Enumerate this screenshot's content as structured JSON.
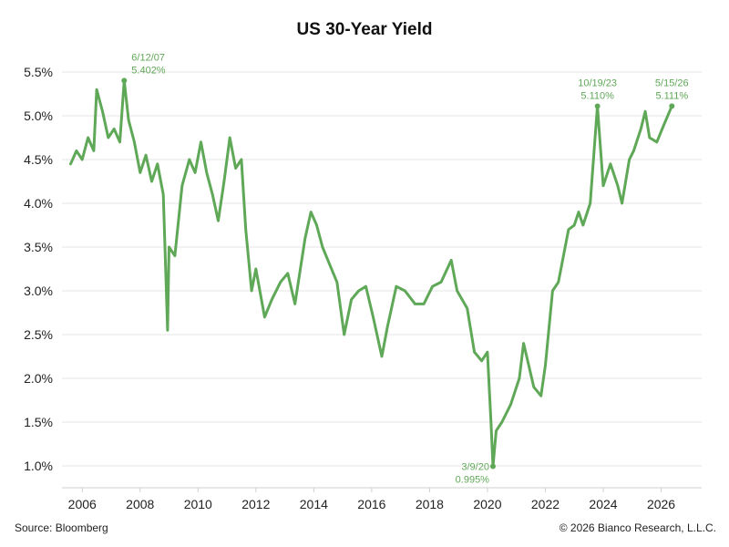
{
  "chart_data": {
    "type": "line",
    "title": "US 30-Year Yield",
    "xlabel": "",
    "ylabel": "",
    "xlim": [
      2005.3,
      2027.4
    ],
    "ylim": [
      0.75,
      5.75
    ],
    "grid": "horizontal",
    "line_color": "#5fa857",
    "x_ticks": [
      {
        "value": 2006,
        "label": "2006"
      },
      {
        "value": 2008,
        "label": "2008"
      },
      {
        "value": 2010,
        "label": "2010"
      },
      {
        "value": 2012,
        "label": "2012"
      },
      {
        "value": 2014,
        "label": "2014"
      },
      {
        "value": 2016,
        "label": "2016"
      },
      {
        "value": 2018,
        "label": "2018"
      },
      {
        "value": 2020,
        "label": "2020"
      },
      {
        "value": 2022,
        "label": "2022"
      },
      {
        "value": 2024,
        "label": "2024"
      },
      {
        "value": 2026,
        "label": "2026"
      }
    ],
    "y_ticks": [
      {
        "value": 1.0,
        "label": "1.0%"
      },
      {
        "value": 1.5,
        "label": "1.5%"
      },
      {
        "value": 2.0,
        "label": "2.0%"
      },
      {
        "value": 2.5,
        "label": "2.5%"
      },
      {
        "value": 3.0,
        "label": "3.0%"
      },
      {
        "value": 3.5,
        "label": "3.5%"
      },
      {
        "value": 4.0,
        "label": "4.0%"
      },
      {
        "value": 4.5,
        "label": "4.5%"
      },
      {
        "value": 5.0,
        "label": "5.0%"
      },
      {
        "value": 5.5,
        "label": "5.5%"
      }
    ],
    "series": [
      {
        "x": [
          2005.6,
          2005.8,
          2006.0,
          2006.2,
          2006.4,
          2006.5,
          2006.7,
          2006.9,
          2007.1,
          2007.3,
          2007.45,
          2007.6,
          2007.8,
          2008.0,
          2008.2,
          2008.4,
          2008.6,
          2008.8,
          2008.95,
          2009.0,
          2009.2,
          2009.45,
          2009.7,
          2009.9,
          2010.1,
          2010.3,
          2010.5,
          2010.7,
          2010.9,
          2011.1,
          2011.3,
          2011.5,
          2011.65,
          2011.85,
          2012.0,
          2012.3,
          2012.55,
          2012.85,
          2013.1,
          2013.35,
          2013.7,
          2013.9,
          2014.1,
          2014.3,
          2014.55,
          2014.8,
          2015.05,
          2015.3,
          2015.55,
          2015.8,
          2016.05,
          2016.35,
          2016.55,
          2016.85,
          2017.15,
          2017.5,
          2017.8,
          2018.1,
          2018.4,
          2018.75,
          2018.95,
          2019.3,
          2019.55,
          2019.8,
          2020.0,
          2020.12,
          2020.19,
          2020.3,
          2020.5,
          2020.8,
          2021.1,
          2021.25,
          2021.6,
          2021.85,
          2022.0,
          2022.25,
          2022.45,
          2022.8,
          2023.0,
          2023.15,
          2023.3,
          2023.55,
          2023.8,
          2024.0,
          2024.25,
          2024.5,
          2024.65,
          2024.9,
          2025.05,
          2025.3,
          2025.45,
          2025.6,
          2025.85,
          2026.1,
          2026.37
        ],
        "values": [
          4.45,
          4.6,
          4.5,
          4.75,
          4.6,
          5.3,
          5.05,
          4.75,
          4.85,
          4.7,
          5.402,
          4.95,
          4.7,
          4.35,
          4.55,
          4.25,
          4.45,
          4.1,
          2.55,
          3.5,
          3.4,
          4.2,
          4.5,
          4.35,
          4.7,
          4.35,
          4.1,
          3.8,
          4.25,
          4.75,
          4.4,
          4.5,
          3.7,
          3.0,
          3.25,
          2.7,
          2.9,
          3.1,
          3.2,
          2.85,
          3.6,
          3.9,
          3.75,
          3.5,
          3.3,
          3.1,
          2.5,
          2.9,
          3.0,
          3.05,
          2.7,
          2.25,
          2.6,
          3.05,
          3.0,
          2.85,
          2.85,
          3.05,
          3.1,
          3.35,
          3.0,
          2.8,
          2.3,
          2.2,
          2.3,
          1.5,
          0.995,
          1.4,
          1.5,
          1.7,
          2.0,
          2.4,
          1.9,
          1.8,
          2.15,
          3.0,
          3.1,
          3.7,
          3.75,
          3.9,
          3.75,
          4.0,
          5.11,
          4.2,
          4.45,
          4.2,
          4.0,
          4.5,
          4.6,
          4.85,
          5.05,
          4.75,
          4.7,
          4.9,
          5.111
        ]
      }
    ],
    "annotations": [
      {
        "x": 2007.45,
        "y": 5.402,
        "date": "6/12/07",
        "value": "5.402%",
        "align": "start",
        "position": "above"
      },
      {
        "x": 2023.8,
        "y": 5.11,
        "date": "10/19/23",
        "value": "5.110%",
        "align": "middle",
        "position": "above"
      },
      {
        "x": 2026.37,
        "y": 5.111,
        "date": "5/15/26",
        "value": "5.111%",
        "align": "middle",
        "position": "above"
      },
      {
        "x": 2020.19,
        "y": 0.995,
        "date": "3/9/20",
        "value": "0.995%",
        "align": "end",
        "position": "right-of-point"
      }
    ]
  },
  "footer": {
    "source": "Source: Bloomberg",
    "copyright": "© 2026 Bianco Research, L.L.C."
  }
}
